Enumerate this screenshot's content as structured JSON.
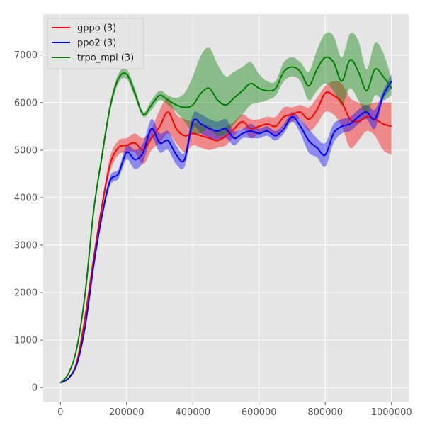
{
  "chart_data": {
    "type": "line",
    "title": "",
    "xlabel": "",
    "ylabel": "",
    "xlim": [
      -52000,
      1052000
    ],
    "ylim": [
      -310,
      7860
    ],
    "xticks": [
      0,
      200000,
      400000,
      600000,
      800000,
      1000000
    ],
    "xtick_labels": [
      "0",
      "200000",
      "400000",
      "600000",
      "800000",
      "1000000"
    ],
    "yticks": [
      0,
      1000,
      2000,
      3000,
      4000,
      5000,
      6000,
      7000
    ],
    "ytick_labels": [
      "0",
      "1000",
      "2000",
      "3000",
      "4000",
      "5000",
      "6000",
      "7000"
    ],
    "grid": true,
    "legend_position": "top-left",
    "series": [
      {
        "name": "gppo (3)",
        "color": "#ff0000",
        "band_color": "#ff0000",
        "x": [
          0,
          25000,
          50000,
          75000,
          100000,
          125000,
          150000,
          175000,
          200000,
          225000,
          250000,
          275000,
          300000,
          325000,
          350000,
          375000,
          400000,
          425000,
          450000,
          475000,
          500000,
          525000,
          550000,
          575000,
          600000,
          625000,
          650000,
          675000,
          700000,
          725000,
          750000,
          775000,
          800000,
          825000,
          850000,
          875000,
          900000,
          925000,
          950000,
          975000,
          1000000
        ],
        "y": [
          100,
          200,
          550,
          1500,
          2700,
          3800,
          4700,
          5050,
          5100,
          5150,
          5000,
          5250,
          5500,
          5800,
          5450,
          5300,
          5350,
          5300,
          5250,
          5200,
          5300,
          5450,
          5600,
          5450,
          5500,
          5550,
          5500,
          5700,
          5750,
          5800,
          5650,
          5850,
          6200,
          6150,
          6000,
          5650,
          5600,
          5700,
          5650,
          5550,
          5500
        ],
        "lower": [
          100,
          200,
          550,
          1500,
          2650,
          3700,
          4550,
          4900,
          4950,
          4950,
          4700,
          5000,
          5150,
          5350,
          5150,
          4950,
          5100,
          5050,
          5000,
          5050,
          5100,
          5300,
          5450,
          5250,
          5350,
          5400,
          5300,
          5500,
          5600,
          5650,
          5400,
          5550,
          5800,
          5750,
          5500,
          5050,
          5200,
          5400,
          5300,
          5000,
          4900
        ],
        "upper": [
          100,
          200,
          550,
          1500,
          2750,
          3900,
          4850,
          5200,
          5250,
          5350,
          5250,
          5450,
          5850,
          6100,
          5750,
          5650,
          5600,
          5550,
          5500,
          5400,
          5500,
          5600,
          5750,
          5650,
          5650,
          5700,
          5700,
          5900,
          5900,
          5950,
          5900,
          6100,
          6350,
          6450,
          6400,
          6100,
          6000,
          5950,
          6000,
          6000,
          6000
        ]
      },
      {
        "name": "ppo2 (3)",
        "color": "#0000ff",
        "band_color": "#0000ff",
        "x": [
          0,
          25000,
          50000,
          75000,
          100000,
          125000,
          150000,
          175000,
          200000,
          225000,
          250000,
          275000,
          300000,
          325000,
          350000,
          375000,
          400000,
          425000,
          450000,
          475000,
          500000,
          525000,
          550000,
          575000,
          600000,
          625000,
          650000,
          675000,
          700000,
          725000,
          750000,
          775000,
          800000,
          825000,
          850000,
          875000,
          900000,
          925000,
          950000,
          975000,
          1000000
        ],
        "y": [
          100,
          200,
          500,
          1300,
          2550,
          3600,
          4350,
          4500,
          4950,
          4800,
          4950,
          5450,
          5150,
          5200,
          4900,
          4800,
          5600,
          5550,
          5450,
          5400,
          5450,
          5250,
          5350,
          5400,
          5350,
          5400,
          5300,
          5450,
          5700,
          5500,
          5200,
          5050,
          4900,
          5350,
          5500,
          5550,
          5700,
          5800,
          5650,
          6150,
          6450
        ],
        "lower": [
          100,
          200,
          500,
          1300,
          2500,
          3500,
          4250,
          4400,
          4800,
          4600,
          4750,
          5250,
          4950,
          5000,
          4700,
          4650,
          5450,
          5350,
          5250,
          5200,
          5250,
          5100,
          5250,
          5250,
          5250,
          5300,
          5200,
          5350,
          5600,
          5350,
          4950,
          4850,
          4650,
          5150,
          5350,
          5400,
          5550,
          5650,
          5450,
          6050,
          6300
        ],
        "upper": [
          100,
          200,
          500,
          1300,
          2600,
          3700,
          4450,
          4600,
          5100,
          5000,
          5150,
          5650,
          5350,
          5400,
          5100,
          4950,
          5750,
          5750,
          5650,
          5600,
          5650,
          5400,
          5450,
          5550,
          5450,
          5500,
          5400,
          5550,
          5800,
          5650,
          5450,
          5250,
          5150,
          5550,
          5650,
          5700,
          5850,
          5950,
          5850,
          6250,
          6600
        ]
      },
      {
        "name": "trpo_mpi (3)",
        "color": "#008000",
        "band_color": "#008000",
        "x": [
          0,
          25000,
          50000,
          75000,
          100000,
          125000,
          150000,
          175000,
          200000,
          225000,
          250000,
          275000,
          300000,
          325000,
          350000,
          375000,
          400000,
          425000,
          450000,
          475000,
          500000,
          525000,
          550000,
          575000,
          600000,
          625000,
          650000,
          675000,
          700000,
          725000,
          750000,
          775000,
          800000,
          825000,
          850000,
          875000,
          900000,
          925000,
          950000,
          975000,
          1000000
        ],
        "y": [
          100,
          300,
          850,
          2000,
          3700,
          4850,
          5900,
          6500,
          6600,
          6200,
          5750,
          5950,
          6150,
          6050,
          5950,
          5900,
          5950,
          6200,
          6300,
          6050,
          5950,
          6100,
          6250,
          6400,
          6300,
          6250,
          6300,
          6650,
          6750,
          6650,
          6350,
          6700,
          6950,
          6850,
          6450,
          6900,
          6650,
          6250,
          6700,
          6550,
          6300
        ],
        "lower": [
          100,
          300,
          850,
          2000,
          3650,
          4750,
          5800,
          6400,
          6500,
          6100,
          5700,
          5850,
          6050,
          5950,
          5800,
          5600,
          5350,
          5350,
          5450,
          5300,
          5350,
          5550,
          5750,
          5950,
          6000,
          6050,
          6150,
          6450,
          6550,
          6450,
          6050,
          6250,
          6400,
          6250,
          5950,
          6300,
          6050,
          5750,
          6150,
          6050,
          6150
        ],
        "upper": [
          100,
          300,
          850,
          2000,
          3750,
          4950,
          6000,
          6600,
          6700,
          6300,
          5800,
          6050,
          6250,
          6150,
          6100,
          6200,
          6550,
          7000,
          7150,
          6800,
          6550,
          6650,
          6750,
          6850,
          6600,
          6450,
          6450,
          6850,
          6950,
          6850,
          6650,
          7100,
          7450,
          7400,
          6950,
          7450,
          7300,
          6700,
          7250,
          7050,
          6500
        ]
      }
    ]
  }
}
